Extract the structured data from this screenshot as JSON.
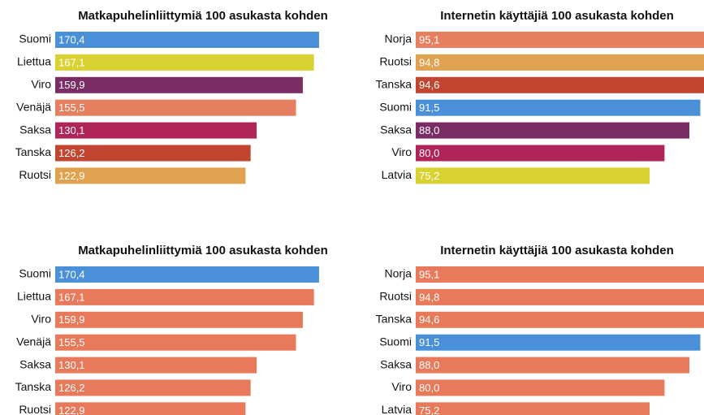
{
  "chart_data": [
    {
      "type": "bar",
      "title": "Matkapuhelinliittymiä 100 asukasta kohden",
      "categories": [
        "Suomi",
        "Liettua",
        "Viro",
        "Venäjä",
        "Saksa",
        "Tanska",
        "Ruotsi"
      ],
      "values": [
        170.4,
        167.1,
        159.9,
        155.5,
        130.1,
        126.2,
        122.9
      ],
      "value_labels": [
        "170,4",
        "167,1",
        "159,9",
        "155,5",
        "130,1",
        "126,2",
        "122,9"
      ],
      "colors": [
        "#4a90d9",
        "#d8d232",
        "#7a2d64",
        "#e57f5f",
        "#b02459",
        "#c2452f",
        "#e0a24e"
      ]
    },
    {
      "type": "bar",
      "title": "Internetin käyttäjiä 100 asukasta kohden",
      "categories": [
        "Norja",
        "Ruotsi",
        "Tanska",
        "Suomi",
        "Saksa",
        "Viro",
        "Latvia"
      ],
      "values": [
        95.1,
        94.8,
        94.6,
        91.5,
        88.0,
        80.0,
        75.2
      ],
      "value_labels": [
        "95,1",
        "94,8",
        "94,6",
        "91,5",
        "88,0",
        "80,0",
        "75,2"
      ],
      "colors": [
        "#e57f5f",
        "#e0a24e",
        "#c2452f",
        "#4a90d9",
        "#7a2d64",
        "#b02459",
        "#d8d232"
      ]
    },
    {
      "type": "bar",
      "title": "Matkapuhelinliittymiä 100 asukasta kohden",
      "categories": [
        "Suomi",
        "Liettua",
        "Viro",
        "Venäjä",
        "Saksa",
        "Tanska",
        "Ruotsi"
      ],
      "values": [
        170.4,
        167.1,
        159.9,
        155.5,
        130.1,
        126.2,
        122.9
      ],
      "value_labels": [
        "170,4",
        "167,1",
        "159,9",
        "155,5",
        "130,1",
        "126,2",
        "122,9"
      ],
      "colors": [
        "#4a90d9",
        "#e8795a",
        "#e8795a",
        "#e8795a",
        "#e8795a",
        "#e8795a",
        "#e8795a"
      ]
    },
    {
      "type": "bar",
      "title": "Internetin käyttäjiä 100 asukasta kohden",
      "categories": [
        "Norja",
        "Ruotsi",
        "Tanska",
        "Suomi",
        "Saksa",
        "Viro",
        "Latvia"
      ],
      "values": [
        95.1,
        94.8,
        94.6,
        91.5,
        88.0,
        80.0,
        75.2
      ],
      "value_labels": [
        "95,1",
        "94,8",
        "94,6",
        "91,5",
        "88,0",
        "80,0",
        "75,2"
      ],
      "colors": [
        "#e8795a",
        "#e8795a",
        "#e8795a",
        "#4a90d9",
        "#e8795a",
        "#e8795a",
        "#e8795a"
      ]
    }
  ]
}
